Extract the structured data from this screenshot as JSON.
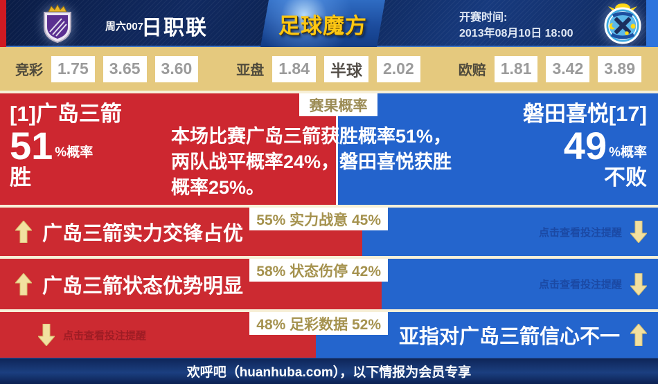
{
  "header": {
    "match_code": "周六007",
    "league": "日职联",
    "brand": "足球魔方",
    "kickoff_label": "开赛时间:",
    "kickoff_datetime": "2013年08月10日 18:00",
    "home_crest": "sanfrecce-hiroshima",
    "away_crest": "jubilo-iwata"
  },
  "odds": {
    "groups": [
      {
        "label": "竞彩",
        "values": [
          "1.75",
          "3.65",
          "3.60"
        ]
      },
      {
        "label": "亚盘",
        "values": [
          "1.84",
          "半球",
          "2.02"
        ]
      },
      {
        "label": "欧赔",
        "values": [
          "1.81",
          "3.42",
          "3.89"
        ]
      }
    ]
  },
  "probability": {
    "badge": "赛果概率",
    "home": {
      "name": "[1]广岛三箭",
      "percent": "51",
      "suffix": "%概率",
      "outcome": "胜"
    },
    "away": {
      "name": "磐田喜悦[17]",
      "percent": "49",
      "suffix": "%概率",
      "outcome": "不败"
    },
    "summary_lines": [
      "本场比赛广岛三箭获胜概率51%，",
      "两队战平概率24%，磐田喜悦获胜",
      "概率25%。"
    ]
  },
  "factors": [
    {
      "home_percent": 55,
      "away_percent": 45,
      "label": "55% 实力战意 45%",
      "home_text": "广岛三箭实力交锋占优",
      "away_hint": "点击查看投注提醒"
    },
    {
      "home_percent": 58,
      "away_percent": 42,
      "label": "58% 状态伤停 42%",
      "home_text": "广岛三箭状态优势明显",
      "away_hint": "点击查看投注提醒"
    },
    {
      "home_percent": 48,
      "away_percent": 52,
      "label": "48% 足彩数据 52%",
      "home_hint": "点击查看投注提醒",
      "away_text": "亚指对广岛三箭信心不一"
    }
  ],
  "footer": {
    "text": "欢呼吧（huanhuba.com），以下情报为会员专享"
  },
  "colors": {
    "home_red": "#cc2a31",
    "away_blue": "#2465cd",
    "odds_bg": "#e5c97e",
    "brand_gold": "#fdc713",
    "arrow_cream": "#f2e0a0",
    "label_gold": "#a5924e"
  }
}
